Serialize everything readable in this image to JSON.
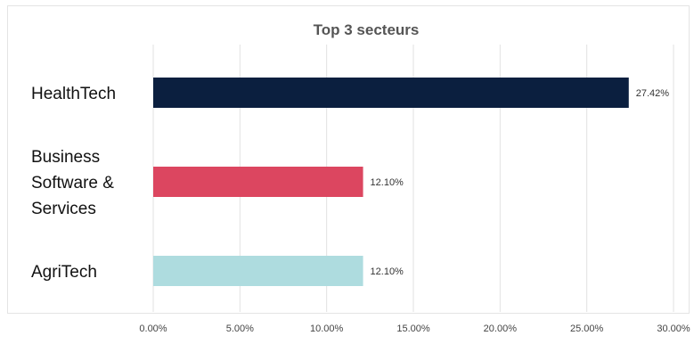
{
  "chart_data": {
    "type": "bar",
    "orientation": "horizontal",
    "title": "Top 3 secteurs",
    "categories": [
      [
        "HealthTech"
      ],
      [
        "Business",
        "Software &",
        "Services"
      ],
      [
        "AgriTech"
      ]
    ],
    "values": [
      27.42,
      12.1,
      12.1
    ],
    "data_labels": [
      "27.42%",
      "12.10%",
      "12.10%"
    ],
    "colors": [
      "#0b1f3f",
      "#dc4660",
      "#aedcdf"
    ],
    "xlim": [
      0,
      30
    ],
    "x_ticks": [
      0,
      5,
      10,
      15,
      20,
      25,
      30
    ],
    "x_tick_labels": [
      "0.00%",
      "5.00%",
      "10.00%",
      "15.00%",
      "20.00%",
      "25.00%",
      "30.00%"
    ],
    "grid": true,
    "legend": "none"
  }
}
